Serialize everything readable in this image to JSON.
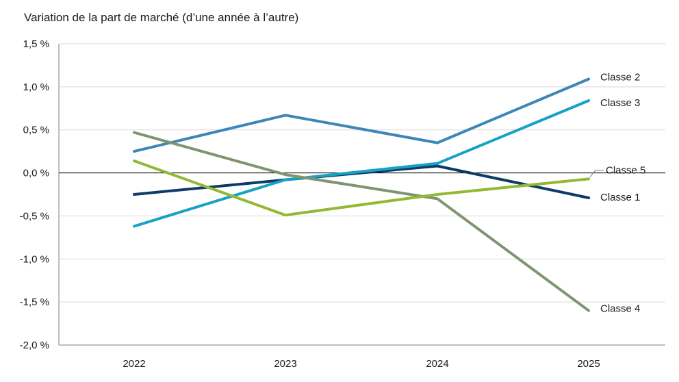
{
  "chart_data": {
    "type": "line",
    "title": "Variation de la part de marché (d’une année à l’autre)",
    "categories": [
      "2022",
      "2023",
      "2024",
      "2025"
    ],
    "ylim": [
      -2.0,
      1.5
    ],
    "yticks": [
      1.5,
      1.0,
      0.5,
      0.0,
      -0.5,
      -1.0,
      -1.5,
      -2.0
    ],
    "ytick_labels": [
      "1,5 %",
      "1,0 %",
      "0,5 %",
      "0,0 %",
      "-0,5 %",
      "-1,0 %",
      "-1,5 %",
      "-2,0 %"
    ],
    "grid": true,
    "series": [
      {
        "name": "Classe 1",
        "values": [
          -0.25,
          -0.08,
          0.08,
          -0.29
        ],
        "color": "#0d3b66"
      },
      {
        "name": "Classe 2",
        "values": [
          0.25,
          0.67,
          0.35,
          1.09
        ],
        "color": "#3d86b8"
      },
      {
        "name": "Classe 3",
        "values": [
          -0.62,
          -0.08,
          0.11,
          0.84
        ],
        "color": "#17a2c4"
      },
      {
        "name": "Classe 4",
        "values": [
          0.47,
          -0.02,
          -0.3,
          -1.6
        ],
        "color": "#7f9470"
      },
      {
        "name": "Classe 5",
        "values": [
          0.14,
          -0.49,
          -0.25,
          -0.07
        ],
        "color": "#94b832"
      }
    ]
  }
}
